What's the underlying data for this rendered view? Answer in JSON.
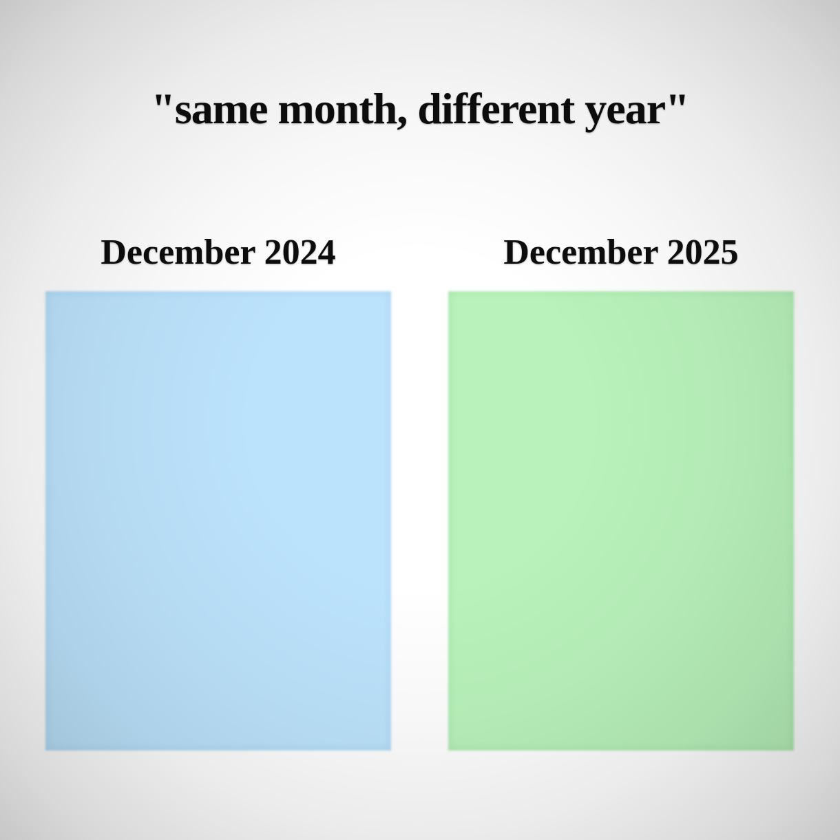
{
  "title": "\"same month, different year\"",
  "panels": [
    {
      "label": "December 2024",
      "fill": "#BCE3FC"
    },
    {
      "label": "December 2025",
      "fill": "#B9F2BB"
    }
  ],
  "colors": {
    "background_center": "#FFFFFF",
    "background_corner": "#C9C9C9",
    "text": "#0D0D0D"
  }
}
